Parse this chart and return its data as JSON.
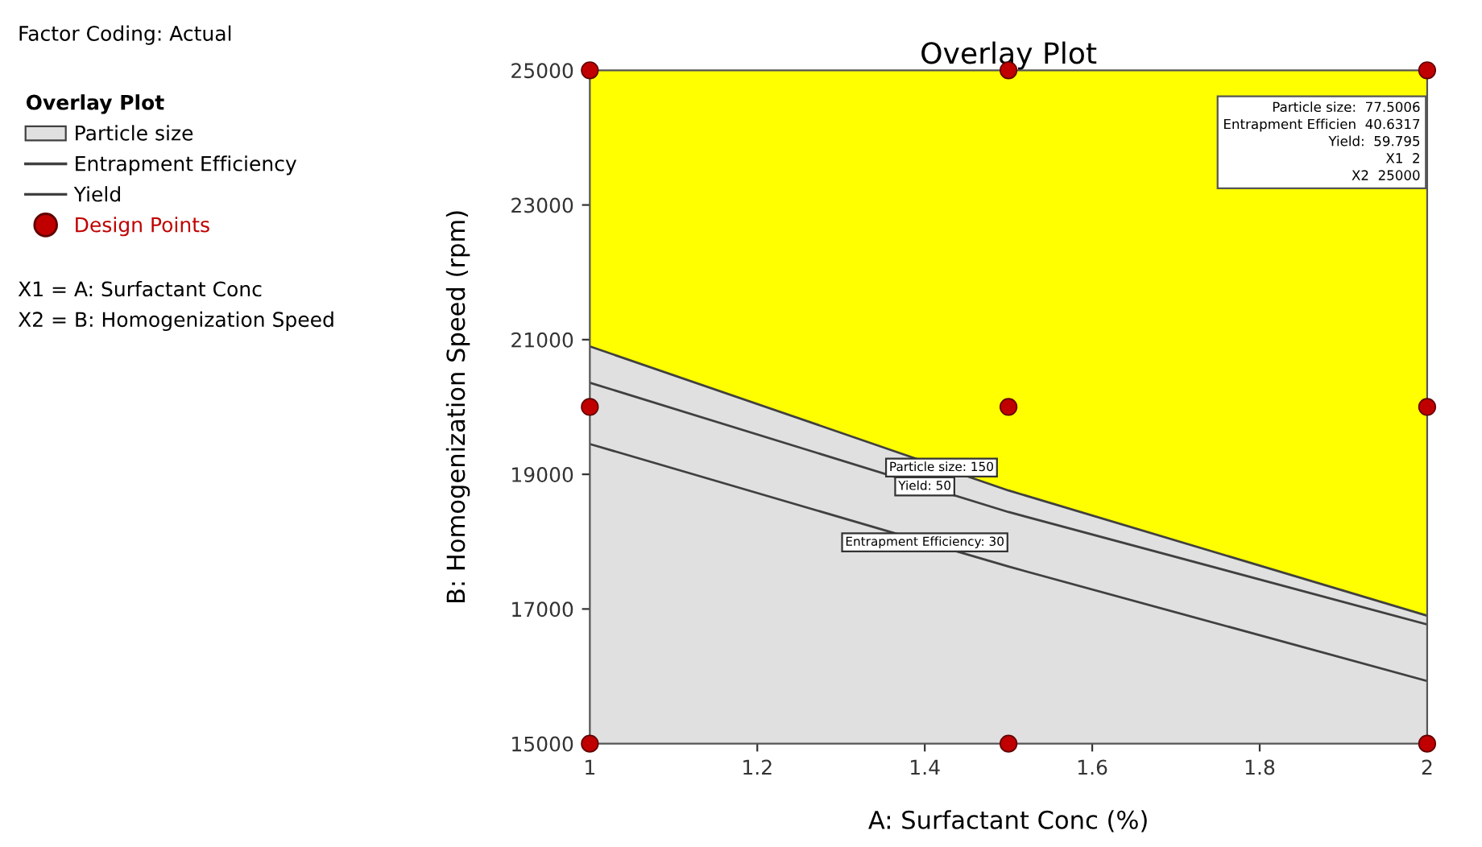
{
  "chart_data": {
    "type": "line",
    "title": "Overlay Plot",
    "xlabel": "A: Surfactant Conc (%)",
    "ylabel": "B: Homogenization Speed (rpm)",
    "legend_title": "Overlay Plot",
    "legend": "left",
    "grid": false,
    "xlim": [
      1,
      2
    ],
    "xticks": [
      1,
      1.2,
      1.4,
      1.6,
      1.8,
      2
    ],
    "ylim": [
      15000,
      25000
    ],
    "yticks": [
      15000,
      17000,
      19000,
      21000,
      23000,
      25000
    ],
    "series": [
      {
        "name": "Particle size",
        "type": "area",
        "color": "#e0e0e0",
        "x": [
          1,
          1.5,
          2
        ],
        "values": [
          20900,
          18760,
          16900
        ]
      },
      {
        "name": "Entrapment Efficiency",
        "color": "#404040",
        "x": [
          1,
          1.5,
          2
        ],
        "values": [
          19450,
          17630,
          15930
        ]
      },
      {
        "name": "Yield",
        "color": "#404040",
        "x": [
          1,
          1.5,
          2
        ],
        "values": [
          20360,
          18440,
          16770
        ]
      },
      {
        "name": "Design Points",
        "type": "scatter",
        "marker": "circle",
        "color": "#c00000",
        "x": [
          1,
          1,
          1,
          1.5,
          1.5,
          1.5,
          2,
          2,
          2
        ],
        "values": [
          15000,
          20000,
          25000,
          15000,
          20000,
          25000,
          15000,
          20000,
          25000
        ]
      }
    ],
    "annotations": [
      "Factor Coding: Actual",
      "X1 = A: Surfactant Conc",
      "X2 = B: Homogenization Speed",
      {
        "text": "Particle size: 150",
        "x": 1.42,
        "y": 19100
      },
      {
        "text": "Yield: 50",
        "x": 1.4,
        "y": 18820
      },
      {
        "text": "Entrapment Efficiency: 30",
        "x": 1.4,
        "y": 17990
      },
      {
        "text": "Particle size:  77.5006\nEntrapment Efficien  40.6317\nYield:  59.795\nX1  2\nX2  25000",
        "x": 2,
        "y": 25000
      }
    ]
  }
}
